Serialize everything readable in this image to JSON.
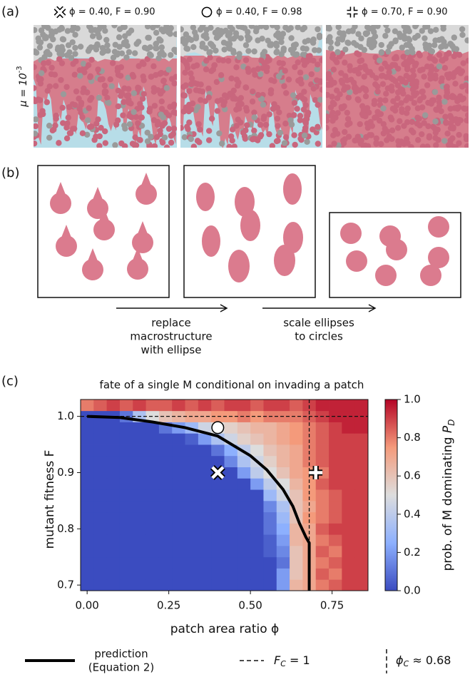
{
  "panel_labels": [
    "(a)",
    "(b)",
    "(c)"
  ],
  "panel_a": {
    "labels": [
      "ϕ = 0.40, F = 0.90",
      "ϕ = 0.40, F = 0.98",
      "ϕ = 0.70, F = 0.90"
    ],
    "mu_base": "μ = 10",
    "mu_exp": "-3"
  },
  "panel_b": {
    "arrow1": [
      "replace",
      "macrostructure",
      "with ellipse"
    ],
    "arrow2": [
      "scale ellipses",
      "to circles"
    ]
  },
  "chart_data": {
    "type": "heatmap",
    "title": "fate of a single M conditional on invading a patch",
    "x_label": "patch area ratio ϕ",
    "y_label": "mutant fitness F",
    "colorbar_label": {
      "text": "prob. of M dominating ",
      "sym": "P",
      "sub": "D"
    },
    "colormap": [
      "#3b4cc0",
      "#8db0fe",
      "#dddddd",
      "#f49a7b",
      "#b40426"
    ],
    "x": [
      0,
      0.04,
      0.08,
      0.12,
      0.16,
      0.2,
      0.24,
      0.28,
      0.32,
      0.36,
      0.4,
      0.44,
      0.48,
      0.52,
      0.56,
      0.6,
      0.64,
      0.68,
      0.72,
      0.76,
      0.8,
      0.84
    ],
    "y": [
      0.7,
      0.72,
      0.74,
      0.76,
      0.78,
      0.8,
      0.82,
      0.84,
      0.86,
      0.88,
      0.9,
      0.92,
      0.94,
      0.96,
      0.98,
      1.0,
      1.02
    ],
    "z": [
      [
        0,
        0,
        0,
        0,
        0,
        0,
        0,
        0,
        0,
        0,
        0,
        0,
        0,
        0,
        0,
        0.2,
        0.65,
        0.7,
        0.8,
        0.85,
        0.9,
        0.9
      ],
      [
        0,
        0,
        0,
        0,
        0,
        0,
        0,
        0,
        0,
        0,
        0,
        0,
        0,
        0,
        0,
        0.2,
        0.6,
        0.7,
        0.85,
        0.8,
        0.9,
        0.9
      ],
      [
        0,
        0,
        0,
        0,
        0,
        0,
        0,
        0,
        0,
        0,
        0,
        0,
        0,
        0,
        0,
        0.1,
        0.6,
        0.7,
        0.8,
        0.85,
        0.9,
        0.9
      ],
      [
        0,
        0,
        0,
        0,
        0,
        0,
        0,
        0,
        0,
        0,
        0,
        0,
        0,
        0,
        0.05,
        0.15,
        0.6,
        0.7,
        0.85,
        0.8,
        0.9,
        0.9
      ],
      [
        0,
        0,
        0,
        0,
        0,
        0,
        0,
        0,
        0,
        0,
        0,
        0,
        0,
        0,
        0.05,
        0.2,
        0.65,
        0.7,
        0.8,
        0.85,
        0.9,
        0.9
      ],
      [
        0,
        0,
        0,
        0,
        0,
        0,
        0,
        0,
        0,
        0,
        0,
        0,
        0,
        0,
        0.1,
        0.25,
        0.65,
        0.7,
        0.85,
        0.9,
        0.9,
        0.9
      ],
      [
        0,
        0,
        0,
        0,
        0,
        0,
        0,
        0,
        0,
        0,
        0,
        0,
        0,
        0,
        0.1,
        0.3,
        0.6,
        0.75,
        0.8,
        0.85,
        0.9,
        0.9
      ],
      [
        0,
        0,
        0,
        0,
        0,
        0,
        0,
        0,
        0,
        0,
        0,
        0,
        0,
        0,
        0.15,
        0.35,
        0.6,
        0.7,
        0.8,
        0.85,
        0.9,
        0.9
      ],
      [
        0,
        0,
        0,
        0,
        0,
        0,
        0,
        0,
        0,
        0,
        0,
        0,
        0,
        0,
        0.3,
        0.45,
        0.6,
        0.75,
        0.8,
        0.85,
        0.9,
        0.9
      ],
      [
        0,
        0,
        0,
        0,
        0,
        0,
        0,
        0,
        0,
        0,
        0,
        0,
        0,
        0.2,
        0.4,
        0.5,
        0.65,
        0.75,
        0.85,
        0.9,
        0.9,
        0.9
      ],
      [
        0,
        0,
        0,
        0,
        0,
        0,
        0,
        0,
        0,
        0,
        0,
        0,
        0.2,
        0.4,
        0.5,
        0.6,
        0.7,
        0.75,
        0.8,
        0.9,
        0.9,
        0.9
      ],
      [
        0,
        0,
        0,
        0,
        0,
        0,
        0,
        0,
        0,
        0,
        0,
        0.15,
        0.35,
        0.45,
        0.55,
        0.65,
        0.7,
        0.8,
        0.85,
        0.9,
        0.9,
        0.9
      ],
      [
        0,
        0,
        0,
        0,
        0,
        0,
        0,
        0,
        0,
        0,
        0.1,
        0.25,
        0.4,
        0.5,
        0.6,
        0.65,
        0.7,
        0.8,
        0.85,
        0.9,
        0.9,
        0.9
      ],
      [
        0,
        0,
        0,
        0,
        0,
        0,
        0,
        0,
        0.05,
        0.2,
        0.35,
        0.45,
        0.55,
        0.6,
        0.65,
        0.7,
        0.75,
        0.8,
        0.85,
        0.9,
        0.9,
        0.9
      ],
      [
        0,
        0,
        0,
        0,
        0,
        0,
        0.1,
        0.2,
        0.3,
        0.45,
        0.5,
        0.55,
        0.6,
        0.65,
        0.65,
        0.7,
        0.75,
        0.8,
        0.85,
        0.9,
        0.95,
        0.95
      ],
      [
        0,
        0,
        0,
        0.1,
        0.35,
        0.5,
        0.6,
        0.65,
        0.7,
        0.7,
        0.75,
        0.75,
        0.8,
        0.75,
        0.8,
        0.8,
        0.8,
        0.85,
        0.9,
        0.95,
        0.95,
        0.95
      ],
      [
        0.8,
        0.85,
        0.9,
        0.85,
        0.9,
        0.85,
        0.85,
        0.9,
        0.85,
        0.9,
        0.85,
        0.9,
        0.9,
        0.85,
        0.9,
        0.9,
        0.85,
        0.9,
        0.95,
        0.95,
        0.95,
        0.95
      ]
    ],
    "xlim": [
      -0.02,
      0.86
    ],
    "ylim": [
      0.69,
      1.03
    ],
    "xticks": [
      {
        "value": 0,
        "label": "0.00"
      },
      {
        "value": 0.25,
        "label": "0.25"
      },
      {
        "value": 0.5,
        "label": "0.50"
      },
      {
        "value": 0.75,
        "label": "0.75"
      }
    ],
    "yticks": [
      0.7,
      0.8,
      0.9,
      {
        "value": 1,
        "label": "1.0"
      }
    ],
    "clim": [
      0,
      1
    ],
    "cticks": [
      {
        "value": 0,
        "label": "0.0"
      },
      0.2,
      0.4,
      0.6,
      0.8,
      {
        "value": 1,
        "label": "1.0"
      }
    ],
    "curve": {
      "x": [
        0,
        0.1,
        0.2,
        0.3,
        0.4,
        0.5,
        0.55,
        0.6,
        0.63,
        0.65,
        0.67,
        0.68,
        0.68
      ],
      "y": [
        1.0,
        0.998,
        0.99,
        0.98,
        0.965,
        0.93,
        0.905,
        0.87,
        0.84,
        0.81,
        0.785,
        0.775,
        0.69
      ]
    },
    "hline": 1,
    "vline": 0.68,
    "markers": [
      {
        "shape": "cross",
        "x": 0.4,
        "y": 0.9
      },
      {
        "shape": "circle",
        "x": 0.4,
        "y": 0.98
      },
      {
        "shape": "plus",
        "x": 0.7,
        "y": 0.9
      }
    ],
    "legend": {
      "prediction": [
        "prediction",
        "(Equation 2)"
      ],
      "fc": {
        "sym": "F",
        "sub": "C",
        "rest": " = 1"
      },
      "phic": {
        "sym": "ϕ",
        "sub": "C",
        "rest": " ≈ 0.68"
      }
    }
  }
}
